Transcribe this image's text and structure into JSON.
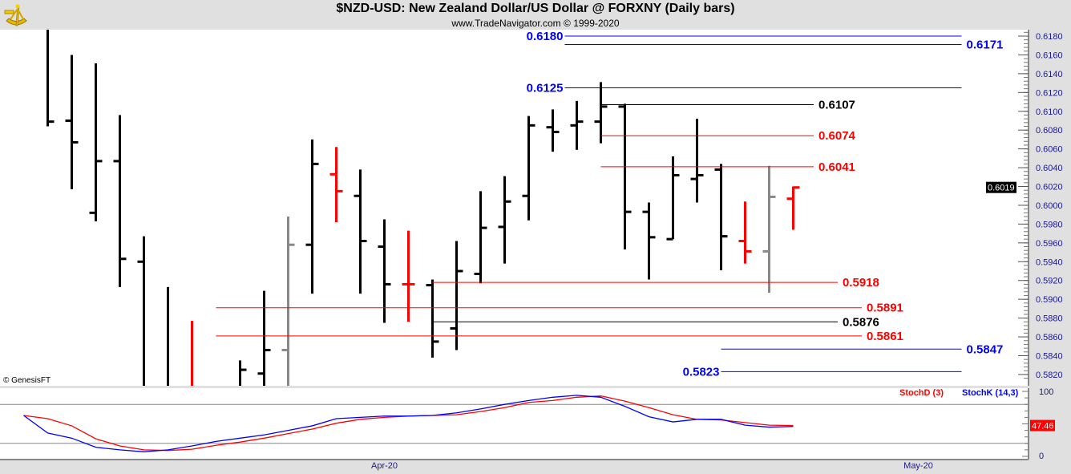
{
  "header": {
    "title": "$NZD-USD:  New Zealand Dollar/US Dollar @ FORXNY  (Daily bars)",
    "subtitle": "www.TradeNavigator.com © 1999-2020",
    "copyright": "© GenesisFT"
  },
  "colors": {
    "up": "#000000",
    "down": "#ff0000",
    "neutral": "#888888",
    "blue": "#0000ff",
    "axis_text": "#1a1a8c"
  },
  "chart_data": [
    {
      "type": "ohlc",
      "title": "$NZD-USD Daily bars",
      "ylim": [
        0.581,
        0.619
      ],
      "y_ticks": [
        "0.6180",
        "0.6160",
        "0.6140",
        "0.6120",
        "0.6100",
        "0.6080",
        "0.6060",
        "0.6040",
        "0.6020",
        "0.6000",
        "0.5980",
        "0.5960",
        "0.5940",
        "0.5920",
        "0.5900",
        "0.5880",
        "0.5860",
        "0.5840",
        "0.5820"
      ],
      "last_price_label": "0.6019",
      "last_price": 0.6019,
      "x_labels": [
        {
          "label": "Apr-20",
          "slot": 15.0
        },
        {
          "label": "May-20",
          "slot": 37.2
        }
      ],
      "bars": [
        {
          "slot": 1,
          "o": null,
          "h": 0.62,
          "l": 0.6084,
          "c": 0.6089,
          "color": "up"
        },
        {
          "slot": 2,
          "o": 0.609,
          "h": 0.616,
          "l": 0.6017,
          "c": 0.6067,
          "color": "up"
        },
        {
          "slot": 3,
          "o": 0.5992,
          "h": 0.6151,
          "l": 0.5983,
          "c": 0.6047,
          "color": "up"
        },
        {
          "slot": 4,
          "o": 0.6047,
          "h": 0.6096,
          "l": 0.5913,
          "c": 0.5943,
          "color": "up"
        },
        {
          "slot": 5,
          "o": 0.594,
          "h": 0.5967,
          "l": 0.578,
          "c": null,
          "color": "up"
        },
        {
          "slot": 6,
          "o": null,
          "h": 0.5913,
          "l": 0.578,
          "c": null,
          "color": "up"
        },
        {
          "slot": 7,
          "o": null,
          "h": 0.5877,
          "l": 0.578,
          "c": null,
          "color": "down"
        },
        {
          "slot": 9,
          "o": null,
          "h": 0.5835,
          "l": 0.578,
          "c": 0.5825,
          "color": "up"
        },
        {
          "slot": 10,
          "o": 0.5821,
          "h": 0.5909,
          "l": 0.578,
          "c": 0.5846,
          "color": "up"
        },
        {
          "slot": 11,
          "o": 0.5846,
          "h": 0.5988,
          "l": 0.578,
          "c": 0.5958,
          "color": "neutral"
        },
        {
          "slot": 12,
          "o": 0.5958,
          "h": 0.607,
          "l": 0.5906,
          "c": 0.6044,
          "color": "up"
        },
        {
          "slot": 13,
          "o": 0.6033,
          "h": 0.6062,
          "l": 0.5982,
          "c": 0.6015,
          "color": "down"
        },
        {
          "slot": 14,
          "o": 0.601,
          "h": 0.6038,
          "l": 0.5906,
          "c": 0.5962,
          "color": "up"
        },
        {
          "slot": 15,
          "o": 0.5956,
          "h": 0.5985,
          "l": 0.5875,
          "c": 0.5916,
          "color": "up"
        },
        {
          "slot": 16,
          "o": 0.5916,
          "h": 0.5973,
          "l": 0.5876,
          "c": 0.5916,
          "color": "down"
        },
        {
          "slot": 17,
          "o": 0.5915,
          "h": 0.5921,
          "l": 0.5838,
          "c": 0.5855,
          "color": "up"
        },
        {
          "slot": 18,
          "o": 0.5869,
          "h": 0.5962,
          "l": 0.5846,
          "c": 0.593,
          "color": "up"
        },
        {
          "slot": 19,
          "o": 0.5927,
          "h": 0.6015,
          "l": 0.5917,
          "c": 0.5976,
          "color": "up"
        },
        {
          "slot": 20,
          "o": 0.5977,
          "h": 0.6031,
          "l": 0.5938,
          "c": 0.6004,
          "color": "up"
        },
        {
          "slot": 21,
          "o": 0.601,
          "h": 0.6095,
          "l": 0.5984,
          "c": 0.6085,
          "color": "up"
        },
        {
          "slot": 22,
          "o": 0.6083,
          "h": 0.6102,
          "l": 0.6057,
          "c": 0.6078,
          "color": "up"
        },
        {
          "slot": 23,
          "o": 0.6085,
          "h": 0.6111,
          "l": 0.6059,
          "c": 0.6089,
          "color": "up"
        },
        {
          "slot": 24,
          "o": 0.6089,
          "h": 0.6131,
          "l": 0.6066,
          "c": 0.6105,
          "color": "up"
        },
        {
          "slot": 25,
          "o": 0.6105,
          "h": 0.6108,
          "l": 0.5953,
          "c": 0.5993,
          "color": "up"
        },
        {
          "slot": 26,
          "o": 0.5993,
          "h": 0.6003,
          "l": 0.5921,
          "c": 0.5966,
          "color": "up"
        },
        {
          "slot": 27,
          "o": 0.5964,
          "h": 0.6052,
          "l": 0.5964,
          "c": 0.6032,
          "color": "up"
        },
        {
          "slot": 28,
          "o": 0.6028,
          "h": 0.6092,
          "l": 0.6003,
          "c": 0.6032,
          "color": "up"
        },
        {
          "slot": 29,
          "o": 0.6038,
          "h": 0.6044,
          "l": 0.5931,
          "c": 0.5967,
          "color": "up"
        },
        {
          "slot": 30,
          "o": 0.5962,
          "h": 0.6004,
          "l": 0.5938,
          "c": 0.5951,
          "color": "down"
        },
        {
          "slot": 31,
          "o": 0.5951,
          "h": 0.6042,
          "l": 0.5907,
          "c": 0.6009,
          "color": "neutral"
        },
        {
          "slot": 32,
          "o": 0.6007,
          "h": 0.602,
          "l": 0.5974,
          "c": 0.6019,
          "color": "down"
        }
      ],
      "levels": [
        {
          "label": "0.6180",
          "value": 0.618,
          "color": "blue",
          "from_slot": 22.5,
          "to_slot": 39,
          "label_side": "left"
        },
        {
          "label": "0.6171",
          "value": 0.6171,
          "color": "blue",
          "from_slot": 22.5,
          "to_slot": 39,
          "label_side": "right"
        },
        {
          "label": "0.6125",
          "value": 0.6125,
          "color": "blue",
          "from_slot": 22.5,
          "to_slot": 39,
          "label_side": "left"
        },
        {
          "label": "0.6107",
          "value": 0.6107,
          "color": "up",
          "from_slot": 24,
          "to_slot": 32.85,
          "label_side": "right"
        },
        {
          "label": "0.6074",
          "value": 0.6074,
          "color": "down",
          "from_slot": 24,
          "to_slot": 32.85,
          "label_side": "right"
        },
        {
          "label": "0.6041",
          "value": 0.6041,
          "color": "down",
          "from_slot": 24,
          "to_slot": 32.85,
          "label_side": "right"
        },
        {
          "label": "0.5918",
          "value": 0.5918,
          "color": "down",
          "from_slot": 17,
          "to_slot": 33.85,
          "label_side": "right"
        },
        {
          "label": "0.5891",
          "value": 0.5891,
          "color": "down",
          "from_slot": 8,
          "to_slot": 34.85,
          "label_side": "right"
        },
        {
          "label": "0.5876",
          "value": 0.5876,
          "color": "up",
          "from_slot": 17,
          "to_slot": 33.85,
          "label_side": "right"
        },
        {
          "label": "0.5861",
          "value": 0.5861,
          "color": "down",
          "from_slot": 8,
          "to_slot": 34.85,
          "label_side": "right"
        },
        {
          "label": "0.5847",
          "value": 0.5847,
          "color": "blue",
          "from_slot": 29,
          "to_slot": 39,
          "label_side": "right"
        },
        {
          "label": "0.5823",
          "value": 0.5823,
          "color": "blue",
          "from_slot": 29,
          "to_slot": 39,
          "label_side": "left"
        }
      ]
    },
    {
      "type": "line",
      "title": "Stochastics",
      "ylim": [
        0,
        100
      ],
      "y_ticks": [
        "100",
        "0"
      ],
      "guide_lines": [
        80,
        20
      ],
      "last_value_label": "47.46",
      "series": [
        {
          "name": "StochD (3)",
          "color": "down",
          "values": [
            63,
            58,
            47,
            27,
            16,
            10,
            9,
            11,
            17,
            22,
            28,
            35,
            42,
            51,
            57,
            60,
            62,
            63,
            64,
            69,
            75,
            83,
            86,
            91,
            93,
            85,
            75,
            64,
            57,
            56,
            52,
            48,
            47.46
          ]
        },
        {
          "name": "StochK (14,3)",
          "color": "blue",
          "values": [
            63,
            36,
            28,
            14,
            10,
            7,
            10,
            16,
            23,
            28,
            33,
            40,
            47,
            58,
            60,
            62,
            62,
            63,
            67,
            73,
            80,
            86,
            91,
            94,
            91,
            77,
            61,
            53,
            57,
            57,
            48,
            45,
            46
          ]
        }
      ]
    }
  ]
}
